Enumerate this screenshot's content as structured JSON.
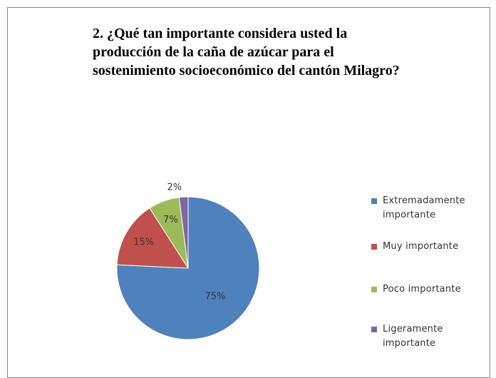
{
  "chart_data": {
    "type": "pie",
    "title": "2. ¿Qué tan importante  considera usted la producción  de la caña de azúcar para el sostenimiento socioeconómico del cantón Milagro?",
    "categories": [
      "Extremadamente importante",
      "Muy importante",
      "Poco importante",
      "Ligeramente importante"
    ],
    "values": [
      75,
      15,
      7,
      2
    ],
    "value_labels": [
      "75%",
      "15%",
      "7%",
      "2%"
    ],
    "colors": [
      "#4f81bd",
      "#c0504d",
      "#9bbb59",
      "#8064a2"
    ],
    "legend": "right"
  }
}
